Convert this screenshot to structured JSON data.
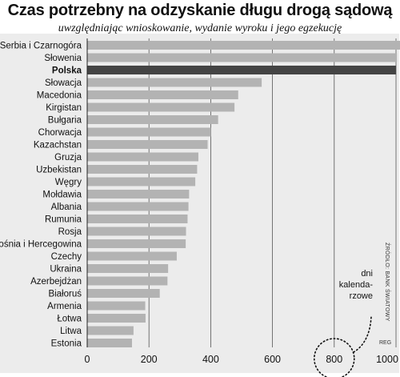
{
  "title": "Czas potrzebny na odzyskanie długu drogą sądową",
  "subtitle": "uwzględniając wnioskowanie, wydanie wyroku i jego egzekucję",
  "unit_lines": [
    "dni",
    "kalenda-",
    "rzowe"
  ],
  "source": "ŹRÓDŁO: BANK ŚWIATOWY",
  "credit": "REG",
  "colors": {
    "bar": "#b3b3b3",
    "highlight": "#444444",
    "background": "#ececec",
    "grid": "#555555"
  },
  "chart_data": {
    "type": "bar",
    "orientation": "horizontal",
    "title": "Czas potrzebny na odzyskanie długu drogą sądową",
    "subtitle": "uwzględniając wnioskowanie, wydanie wyroku i jego egzekucję",
    "xlabel": "dni kalendarzowe",
    "xlim": [
      0,
      1000
    ],
    "xticks": [
      0,
      200,
      400,
      600,
      800,
      1000
    ],
    "grid": true,
    "highlight": "Polska",
    "categories": [
      "Serbia i Czarnogóra",
      "Słowenia",
      "Polska",
      "Słowacja",
      "Macedonia",
      "Kirgistan",
      "Bułgaria",
      "Chorwacja",
      "Kazachstan",
      "Gruzja",
      "Uzbekistan",
      "Węgry",
      "Mołdawia",
      "Albania",
      "Rumunia",
      "Rosja",
      "Bośnia i Hercegowina",
      "Czechy",
      "Ukraina",
      "Azerbejdżan",
      "Białoruś",
      "Armenia",
      "Łotwa",
      "Litwa",
      "Estonia"
    ],
    "values": [
      1028,
      1003,
      1000,
      565,
      489,
      477,
      424,
      400,
      390,
      360,
      356,
      350,
      330,
      328,
      325,
      320,
      319,
      290,
      262,
      260,
      235,
      188,
      189,
      150,
      145
    ]
  }
}
